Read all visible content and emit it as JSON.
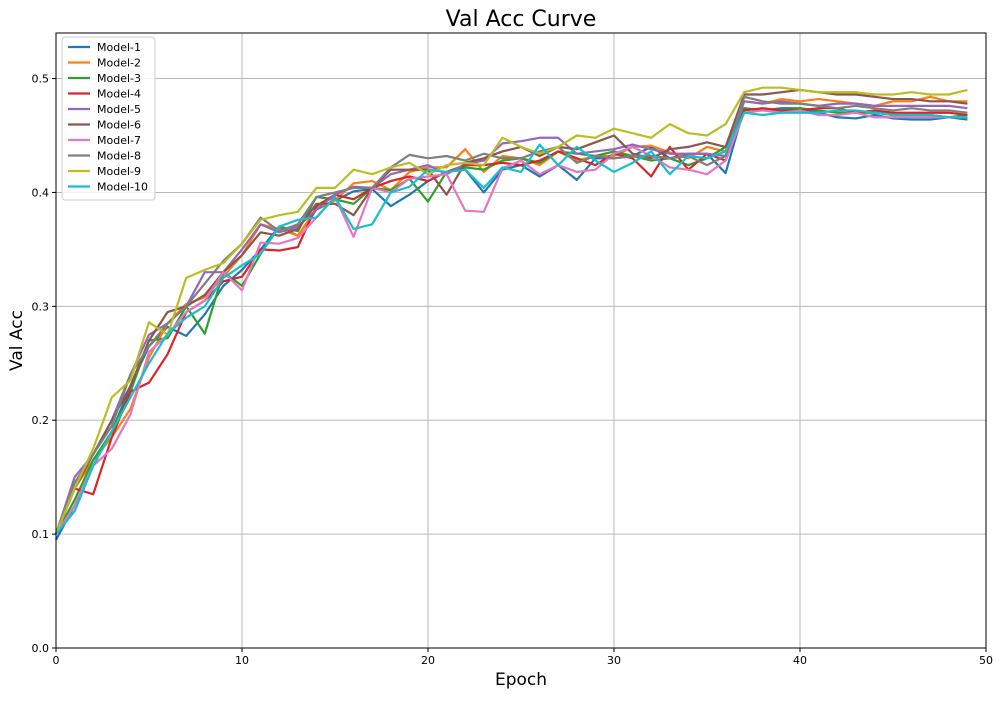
{
  "chart_data": {
    "type": "line",
    "title": "Val Acc Curve",
    "xlabel": "Epoch",
    "ylabel": "Val Acc",
    "xlim": [
      0,
      50
    ],
    "ylim": [
      0.0,
      0.54
    ],
    "x_ticks": [
      0,
      10,
      20,
      30,
      40,
      50
    ],
    "y_ticks": [
      0.0,
      0.1,
      0.2,
      0.3,
      0.4,
      0.5
    ],
    "x_tick_labels": [
      "0",
      "10",
      "20",
      "30",
      "40",
      "50"
    ],
    "y_tick_labels": [
      "0.0",
      "0.1",
      "0.2",
      "0.3",
      "0.4",
      "0.5"
    ],
    "grid": true,
    "legend_position": "top-left",
    "x": [
      0,
      1,
      2,
      3,
      4,
      5,
      6,
      7,
      8,
      9,
      10,
      11,
      12,
      13,
      14,
      15,
      16,
      17,
      18,
      19,
      20,
      21,
      22,
      23,
      24,
      25,
      26,
      27,
      28,
      29,
      30,
      31,
      32,
      33,
      34,
      35,
      36,
      37,
      38,
      39,
      40,
      41,
      42,
      43,
      44,
      45,
      46,
      47,
      48,
      49
    ],
    "series": [
      {
        "name": "Model-1",
        "color": "#1f77b4",
        "values": [
          0.095,
          0.125,
          0.16,
          0.19,
          0.23,
          0.265,
          0.282,
          0.274,
          0.293,
          0.318,
          0.332,
          0.35,
          0.37,
          0.362,
          0.385,
          0.393,
          0.401,
          0.403,
          0.388,
          0.398,
          0.41,
          0.418,
          0.42,
          0.4,
          0.42,
          0.424,
          0.414,
          0.424,
          0.411,
          0.43,
          0.43,
          0.432,
          0.44,
          0.43,
          0.434,
          0.434,
          0.417,
          0.474,
          0.472,
          0.474,
          0.474,
          0.47,
          0.466,
          0.465,
          0.468,
          0.465,
          0.464,
          0.464,
          0.466,
          0.464
        ]
      },
      {
        "name": "Model-2",
        "color": "#ff7f0e",
        "values": [
          0.1,
          0.14,
          0.165,
          0.185,
          0.21,
          0.255,
          0.285,
          0.302,
          0.308,
          0.326,
          0.345,
          0.372,
          0.368,
          0.362,
          0.386,
          0.393,
          0.408,
          0.41,
          0.402,
          0.418,
          0.422,
          0.422,
          0.438,
          0.418,
          0.432,
          0.43,
          0.424,
          0.436,
          0.428,
          0.432,
          0.432,
          0.44,
          0.441,
          0.435,
          0.43,
          0.44,
          0.436,
          0.48,
          0.478,
          0.482,
          0.48,
          0.482,
          0.48,
          0.478,
          0.476,
          0.48,
          0.48,
          0.484,
          0.48,
          0.48
        ]
      },
      {
        "name": "Model-3",
        "color": "#2ca02c",
        "values": [
          0.1,
          0.13,
          0.165,
          0.19,
          0.225,
          0.27,
          0.272,
          0.3,
          0.276,
          0.33,
          0.318,
          0.346,
          0.37,
          0.366,
          0.396,
          0.394,
          0.39,
          0.404,
          0.402,
          0.412,
          0.392,
          0.418,
          0.422,
          0.42,
          0.428,
          0.43,
          0.426,
          0.436,
          0.434,
          0.432,
          0.436,
          0.432,
          0.428,
          0.43,
          0.424,
          0.43,
          0.44,
          0.474,
          0.472,
          0.472,
          0.474,
          0.472,
          0.47,
          0.47,
          0.47,
          0.468,
          0.468,
          0.468,
          0.466,
          0.468
        ]
      },
      {
        "name": "Model-4",
        "color": "#d62728",
        "values": [
          0.1,
          0.14,
          0.135,
          0.185,
          0.225,
          0.233,
          0.258,
          0.295,
          0.305,
          0.322,
          0.326,
          0.35,
          0.349,
          0.352,
          0.388,
          0.398,
          0.394,
          0.404,
          0.41,
          0.414,
          0.41,
          0.418,
          0.424,
          0.424,
          0.426,
          0.424,
          0.428,
          0.436,
          0.43,
          0.424,
          0.434,
          0.43,
          0.414,
          0.44,
          0.42,
          0.434,
          0.428,
          0.472,
          0.474,
          0.472,
          0.472,
          0.474,
          0.474,
          0.47,
          0.472,
          0.47,
          0.47,
          0.47,
          0.47,
          0.468
        ]
      },
      {
        "name": "Model-5",
        "color": "#9467bd",
        "values": [
          0.1,
          0.15,
          0.17,
          0.2,
          0.24,
          0.275,
          0.285,
          0.3,
          0.33,
          0.33,
          0.35,
          0.372,
          0.365,
          0.37,
          0.385,
          0.398,
          0.405,
          0.404,
          0.416,
          0.42,
          0.424,
          0.416,
          0.425,
          0.428,
          0.443,
          0.445,
          0.448,
          0.448,
          0.434,
          0.436,
          0.438,
          0.442,
          0.438,
          0.434,
          0.434,
          0.434,
          0.432,
          0.48,
          0.478,
          0.48,
          0.478,
          0.476,
          0.478,
          0.478,
          0.476,
          0.476,
          0.476,
          0.476,
          0.476,
          0.474
        ]
      },
      {
        "name": "Model-6",
        "color": "#8c564b",
        "values": [
          0.1,
          0.14,
          0.17,
          0.2,
          0.23,
          0.27,
          0.295,
          0.3,
          0.31,
          0.33,
          0.345,
          0.365,
          0.362,
          0.368,
          0.39,
          0.39,
          0.38,
          0.404,
          0.42,
          0.42,
          0.42,
          0.398,
          0.426,
          0.43,
          0.436,
          0.44,
          0.432,
          0.44,
          0.438,
          0.444,
          0.45,
          0.434,
          0.43,
          0.438,
          0.44,
          0.444,
          0.44,
          0.486,
          0.486,
          0.488,
          0.49,
          0.488,
          0.486,
          0.486,
          0.484,
          0.482,
          0.482,
          0.48,
          0.48,
          0.478
        ]
      },
      {
        "name": "Model-7",
        "color": "#e377c2",
        "values": [
          0.1,
          0.125,
          0.16,
          0.175,
          0.205,
          0.26,
          0.275,
          0.295,
          0.305,
          0.33,
          0.314,
          0.356,
          0.355,
          0.36,
          0.378,
          0.396,
          0.361,
          0.404,
          0.4,
          0.412,
          0.414,
          0.416,
          0.384,
          0.383,
          0.421,
          0.428,
          0.416,
          0.424,
          0.418,
          0.42,
          0.434,
          0.44,
          0.432,
          0.422,
          0.42,
          0.416,
          0.428,
          0.47,
          0.472,
          0.47,
          0.472,
          0.468,
          0.468,
          0.47,
          0.466,
          0.466,
          0.466,
          0.466,
          0.466,
          0.466
        ]
      },
      {
        "name": "Model-8",
        "color": "#7f7f7f",
        "values": [
          0.1,
          0.145,
          0.17,
          0.195,
          0.24,
          0.265,
          0.285,
          0.3,
          0.32,
          0.34,
          0.355,
          0.378,
          0.366,
          0.372,
          0.396,
          0.4,
          0.404,
          0.404,
          0.422,
          0.433,
          0.43,
          0.432,
          0.428,
          0.434,
          0.43,
          0.43,
          0.436,
          0.44,
          0.426,
          0.432,
          0.43,
          0.432,
          0.432,
          0.43,
          0.432,
          0.424,
          0.432,
          0.484,
          0.48,
          0.478,
          0.478,
          0.476,
          0.474,
          0.476,
          0.474,
          0.472,
          0.474,
          0.472,
          0.472,
          0.47
        ]
      },
      {
        "name": "Model-9",
        "color": "#bcbd22",
        "values": [
          0.1,
          0.14,
          0.175,
          0.22,
          0.235,
          0.286,
          0.275,
          0.325,
          0.332,
          0.338,
          0.355,
          0.376,
          0.38,
          0.383,
          0.404,
          0.404,
          0.42,
          0.416,
          0.422,
          0.426,
          0.416,
          0.424,
          0.426,
          0.424,
          0.448,
          0.44,
          0.434,
          0.44,
          0.45,
          0.448,
          0.456,
          0.452,
          0.448,
          0.46,
          0.452,
          0.45,
          0.46,
          0.488,
          0.492,
          0.492,
          0.49,
          0.488,
          0.488,
          0.488,
          0.486,
          0.486,
          0.488,
          0.486,
          0.486,
          0.49
        ]
      },
      {
        "name": "Model-10",
        "color": "#17becf",
        "values": [
          0.1,
          0.12,
          0.16,
          0.19,
          0.22,
          0.25,
          0.276,
          0.29,
          0.3,
          0.325,
          0.336,
          0.346,
          0.37,
          0.376,
          0.378,
          0.396,
          0.368,
          0.372,
          0.4,
          0.405,
          0.42,
          0.418,
          0.42,
          0.404,
          0.422,
          0.418,
          0.442,
          0.424,
          0.44,
          0.428,
          0.418,
          0.426,
          0.436,
          0.416,
          0.432,
          0.43,
          0.436,
          0.47,
          0.468,
          0.47,
          0.47,
          0.47,
          0.472,
          0.472,
          0.47,
          0.468,
          0.468,
          0.468,
          0.466,
          0.466
        ]
      }
    ]
  }
}
